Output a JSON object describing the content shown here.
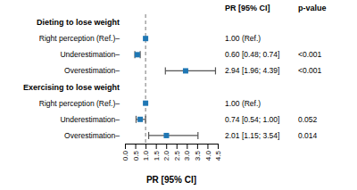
{
  "chart_data": {
    "type": "forest",
    "xlabel": "PR [95% CI]",
    "value_label_title": "PR [95% CI]",
    "p_value_title": "p-value",
    "ref_line": 1.0,
    "xlim": [
      0,
      4.5
    ],
    "xticks": [
      {
        "value": 0.0,
        "label": "0.0"
      },
      {
        "value": 0.5,
        "label": "0.5"
      },
      {
        "value": 1.0,
        "label": "1.0"
      },
      {
        "value": 1.5,
        "label": "1.5"
      },
      {
        "value": 2.0,
        "label": "2.0"
      },
      {
        "value": 2.5,
        "label": "2.5"
      },
      {
        "value": 3.0,
        "label": "3.0"
      },
      {
        "value": 3.5,
        "label": "3.5"
      },
      {
        "value": 4.0,
        "label": "4.0"
      },
      {
        "value": 4.5,
        "label": "4.5"
      }
    ],
    "groups": [
      {
        "label": "Dieting to lose weight",
        "categories": [
          "Right perception (Ref.)–",
          "Underestimation–",
          "Overestimation–"
        ],
        "values": [
          1.0,
          0.6,
          2.94
        ],
        "ci_lo": [
          null,
          0.48,
          1.96
        ],
        "ci_hi": [
          null,
          0.74,
          4.39
        ],
        "value_labels": [
          "1.00 (Ref.)",
          "0.60 [0.48; 0.74]",
          "2.94 [1.96; 4.39]"
        ],
        "p_values": [
          null,
          "<0.001",
          "<0.001"
        ]
      },
      {
        "label": "Exercising to lose weight",
        "categories": [
          "Right perception (Ref.)–",
          "Underestimation–",
          "Overestimation–"
        ],
        "values": [
          1.0,
          0.74,
          2.01
        ],
        "ci_lo": [
          null,
          0.54,
          1.15
        ],
        "ci_hi": [
          null,
          1.0,
          3.54
        ],
        "value_labels": [
          "1.00 (Ref.)",
          "0.74 [0.54; 1.00]",
          "2.01 [1.15; 3.54]"
        ],
        "p_values": [
          null,
          "0.052",
          "0.014"
        ]
      }
    ]
  }
}
